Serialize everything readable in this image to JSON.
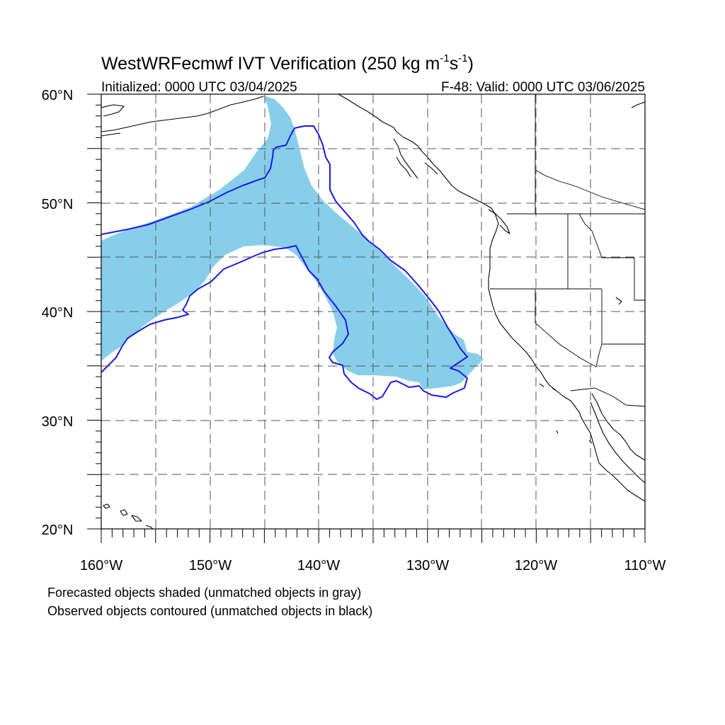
{
  "title": {
    "main": "WestWRFecmwf IVT Verification (250 kg m",
    "sup1": "-1",
    "mid": "s",
    "sup2": "-1",
    "end": ")"
  },
  "initialized": "Initialized: 0000 UTC 03/04/2025",
  "valid": "F-48: Valid: 0000 UTC 03/06/2025",
  "lat_labels": [
    "60°N",
    "50°N",
    "40°N",
    "30°N",
    "20°N"
  ],
  "lon_labels": [
    "160°W",
    "150°W",
    "140°W",
    "130°W",
    "120°W",
    "110°W"
  ],
  "legend": {
    "line1": "Forecasted objects shaded (unmatched objects in gray)",
    "line2": "Observed objects contoured (unmatched objects in black)"
  },
  "colors": {
    "forecast_fill": "#87ceeb",
    "observed_contour": "#1a1ae6",
    "coastline": "#000000"
  },
  "extent": {
    "lon_min": -160,
    "lon_max": -110,
    "lat_min": 20,
    "lat_max": 60
  }
}
